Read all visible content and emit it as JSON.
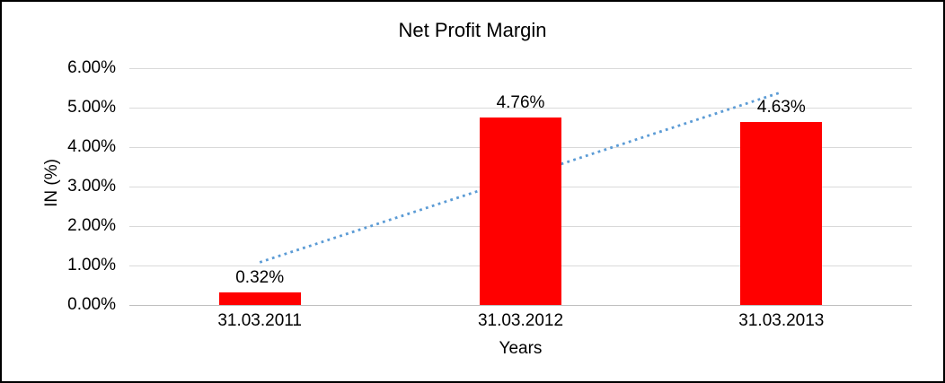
{
  "window": {
    "background_color": "#FFFFFF",
    "border_color": "#000000"
  },
  "chart_data": {
    "type": "bar",
    "title": "Net Profit Margin",
    "categories": [
      "31.03.2011",
      "31.03.2012",
      "31.03.2013"
    ],
    "values": [
      0.32,
      4.76,
      4.63
    ],
    "data_labels": [
      "0.32%",
      "4.76%",
      "4.63%"
    ],
    "xlabel": "Years",
    "ylabel": "IN (%)",
    "ylim": [
      0,
      6
    ],
    "ytick_step": 1,
    "ytick_labels": [
      "0.00%",
      "1.00%",
      "2.00%",
      "3.00%",
      "4.00%",
      "5.00%",
      "6.00%"
    ],
    "bar_color": "#FF0000",
    "gridline_color": "#D9D9D9",
    "axis_line_color": "#BFBFBF",
    "text_color": "#000000",
    "grid": true,
    "legend": "none",
    "trendline": {
      "type": "linear",
      "style": "dotted",
      "color": "#5B9BD5"
    }
  }
}
